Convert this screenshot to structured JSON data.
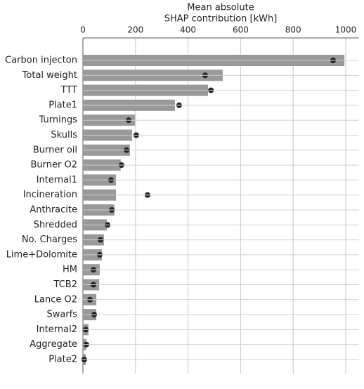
{
  "chart_data": {
    "type": "bar",
    "orientation": "horizontal",
    "title": [
      "Mean absolute",
      "SHAP contribution [kWh]"
    ],
    "categories": [
      "Carbon injecton",
      "Total weight",
      "TTT",
      "Plate1",
      "Turnings",
      "Skulls",
      "Burner oil",
      "Burner O2",
      "Internal1",
      "Incineration",
      "Anthracite",
      "Shredded",
      "No. Charges",
      "Lime+Dolomite",
      "HM",
      "TCB2",
      "Lance O2",
      "Swarfs",
      "Internal2",
      "Aggregate",
      "Plate2"
    ],
    "values": [
      995,
      532,
      476,
      350,
      198,
      187,
      179,
      144,
      126,
      126,
      120,
      91,
      80,
      72,
      64,
      62,
      51,
      51,
      21,
      13,
      11
    ],
    "color": "#999999",
    "points": [
      952,
      465,
      487,
      366,
      174,
      203,
      166,
      147,
      107,
      246,
      110,
      94,
      67,
      64,
      40,
      40,
      27,
      43,
      11,
      13,
      5
    ],
    "point_color": "#222222",
    "xlim": [
      0,
      1050
    ],
    "xticks": [
      0,
      200,
      400,
      600,
      800,
      1000
    ],
    "grid": true
  }
}
